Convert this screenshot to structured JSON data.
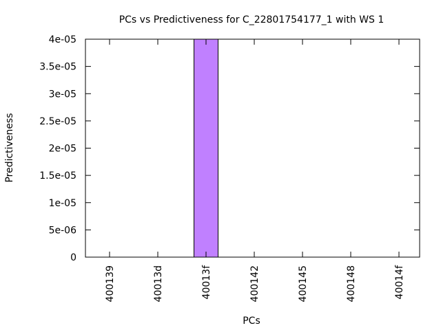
{
  "chart_data": {
    "type": "bar",
    "title": "PCs vs Predictiveness for C_22801754177_1 with WS 1",
    "xlabel": "PCs",
    "ylabel": "Predictiveness",
    "categories": [
      "400139",
      "40013d",
      "40013f",
      "400142",
      "400145",
      "400148",
      "40014f"
    ],
    "values": [
      0,
      0,
      4e-05,
      0,
      0,
      0,
      0
    ],
    "ylim": [
      0,
      4e-05
    ],
    "yticks": [
      {
        "value": 0,
        "label": "0"
      },
      {
        "value": 5e-06,
        "label": "5e-06"
      },
      {
        "value": 1e-05,
        "label": "1e-05"
      },
      {
        "value": 1.5e-05,
        "label": "1.5e-05"
      },
      {
        "value": 2e-05,
        "label": "2e-05"
      },
      {
        "value": 2.5e-05,
        "label": "2.5e-05"
      },
      {
        "value": 3e-05,
        "label": "3e-05"
      },
      {
        "value": 3.5e-05,
        "label": "3.5e-05"
      },
      {
        "value": 4e-05,
        "label": "4e-05"
      }
    ],
    "grid": false,
    "bar_color": "#c080ff",
    "bar_edge_color": "#000000"
  }
}
